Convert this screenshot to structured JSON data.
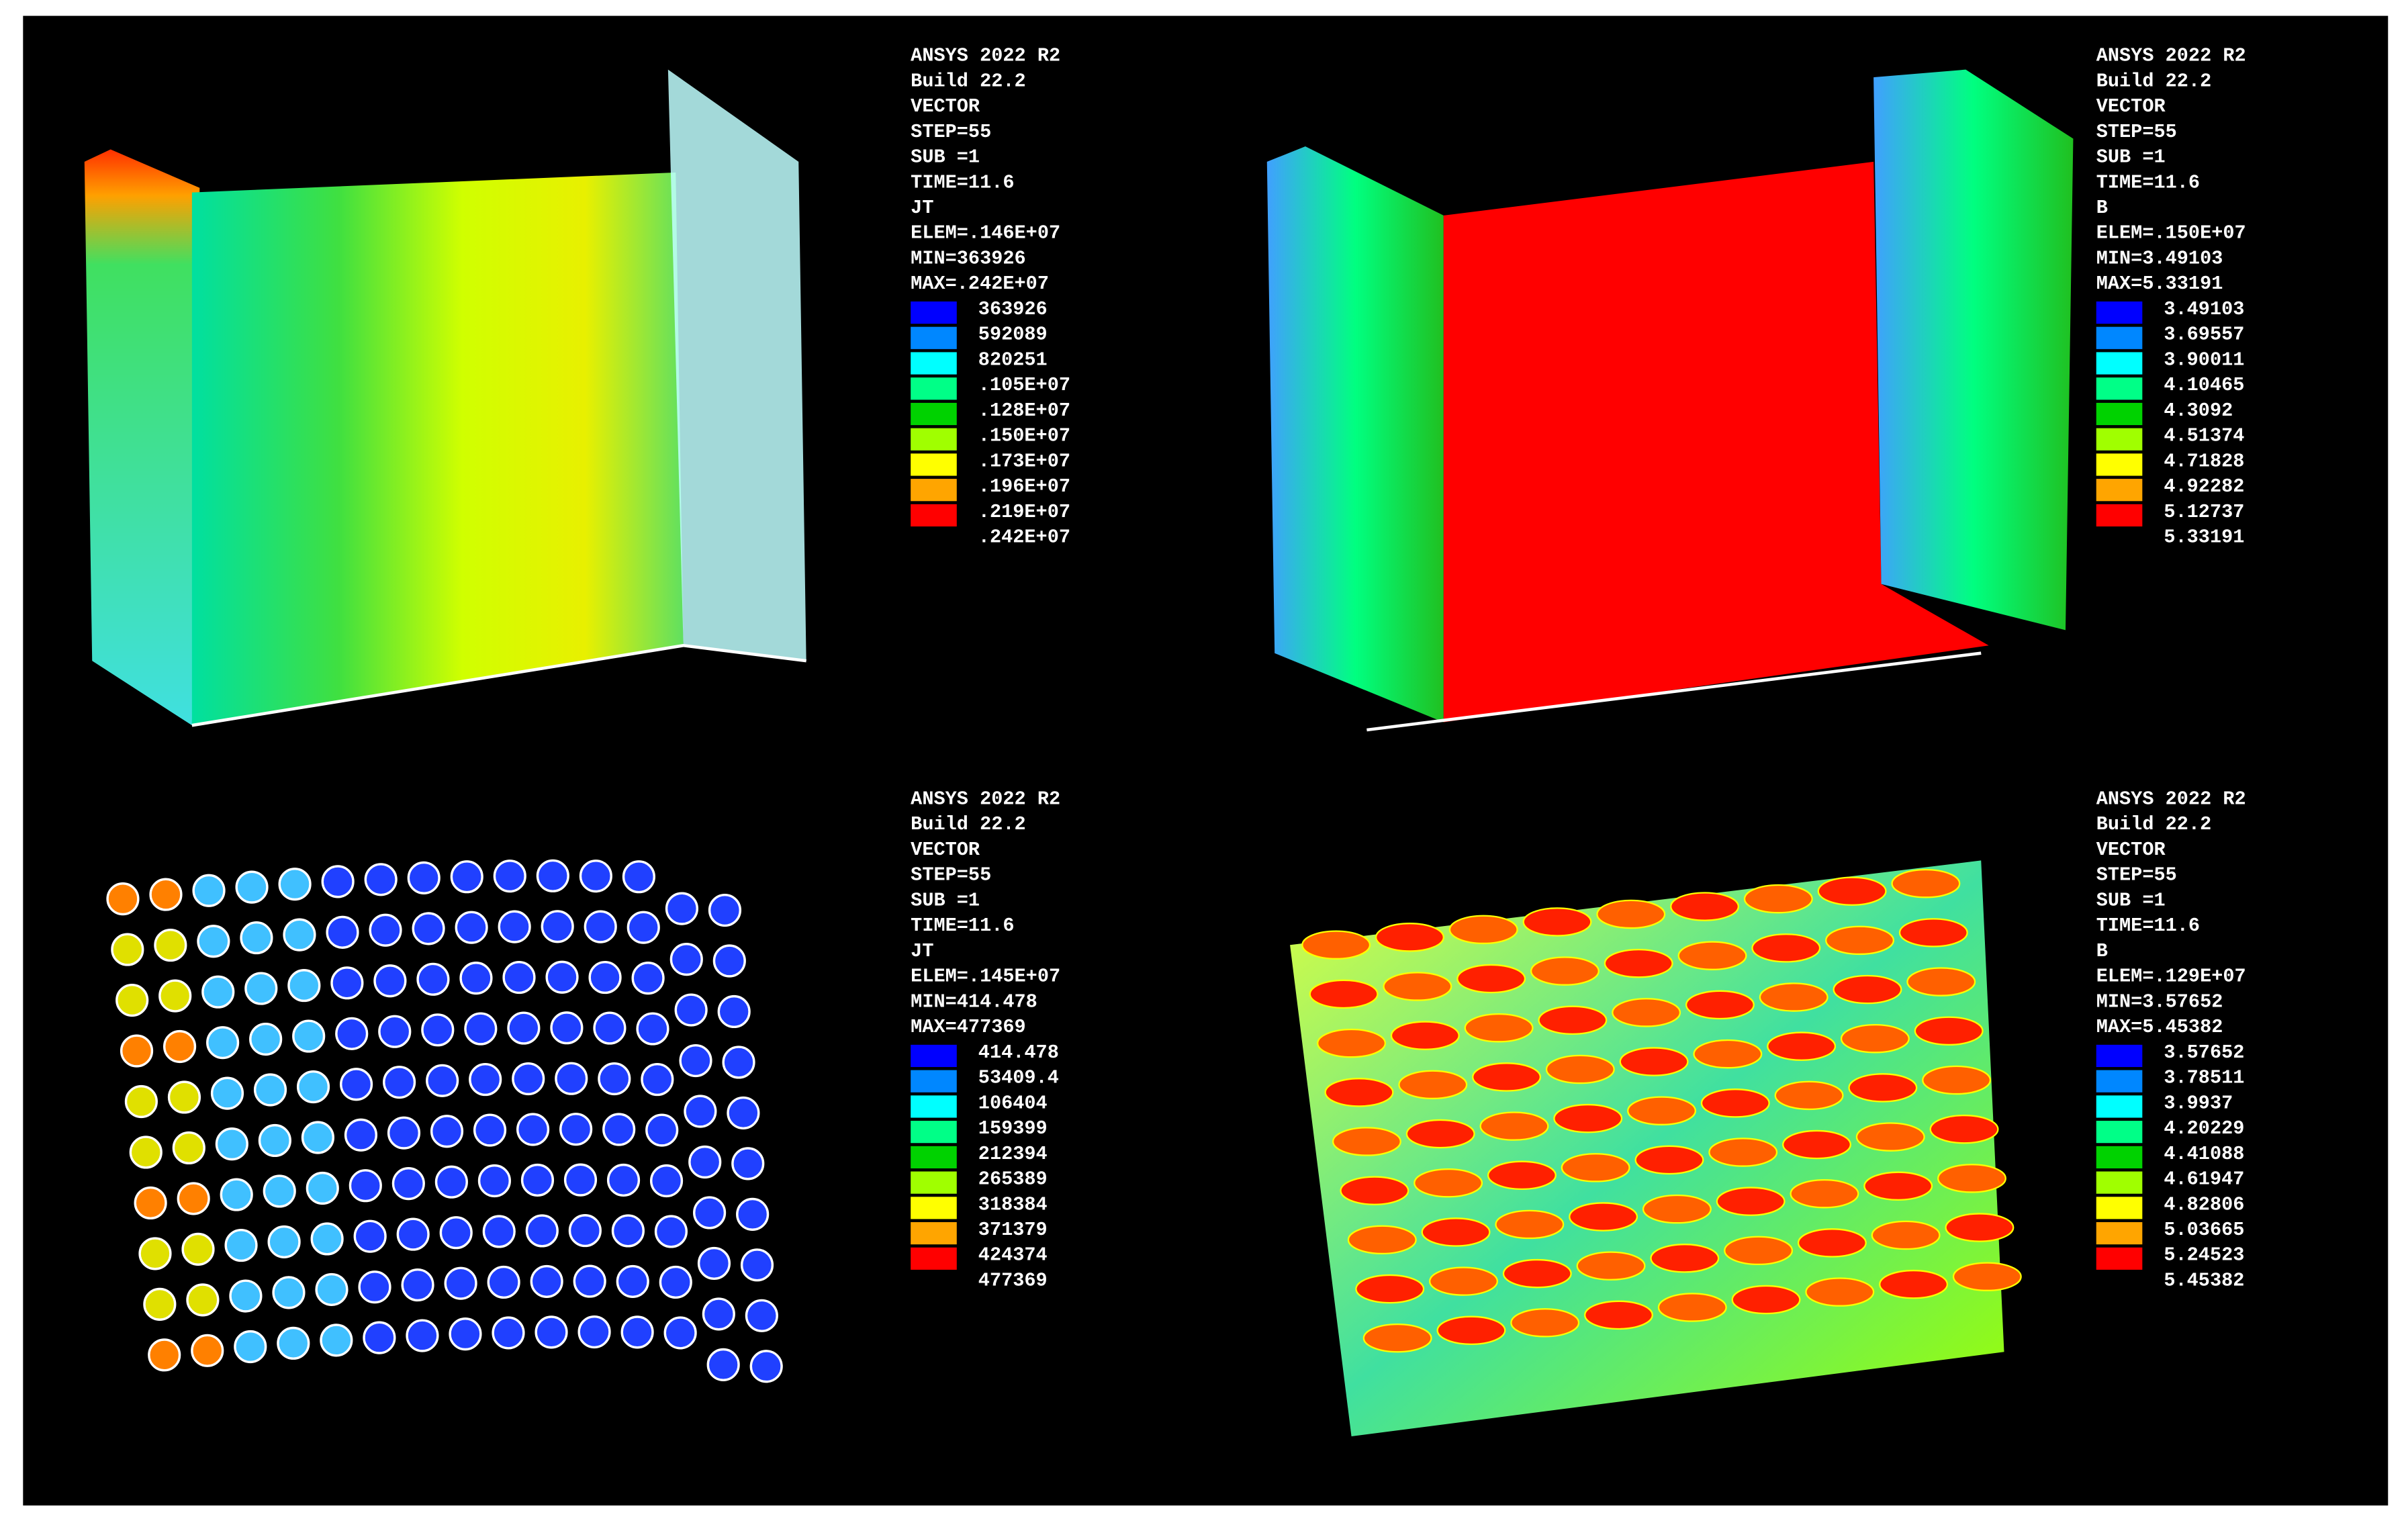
{
  "legend_colors": [
    "#0000ff",
    "#0087ff",
    "#00ffff",
    "#00ff87",
    "#00d200",
    "#a0ff00",
    "#ffff00",
    "#ffa500",
    "#ff0000"
  ],
  "panels": [
    {
      "info": [
        "ANSYS 2022 R2",
        "Build 22.2",
        "VECTOR",
        "STEP=55",
        "SUB =1",
        "TIME=11.6",
        "JT",
        "ELEM=.146E+07",
        "MIN=363926",
        "MAX=.242E+07"
      ],
      "legend": [
        "363926",
        "592089",
        "820251",
        ".105E+07",
        ".128E+07",
        ".150E+07",
        ".173E+07",
        ".196E+07",
        ".219E+07",
        ".242E+07"
      ]
    },
    {
      "info": [
        "ANSYS 2022 R2",
        "Build 22.2",
        "VECTOR",
        "STEP=55",
        "SUB =1",
        "TIME=11.6",
        "B",
        "ELEM=.150E+07",
        "MIN=3.49103",
        "MAX=5.33191"
      ],
      "legend": [
        "3.49103",
        "3.69557",
        "3.90011",
        "4.10465",
        "4.3092",
        "4.51374",
        "4.71828",
        "4.92282",
        "5.12737",
        "5.33191"
      ]
    },
    {
      "info": [
        "ANSYS 2022 R2",
        "Build 22.2",
        "VECTOR",
        "STEP=55",
        "SUB =1",
        "TIME=11.6",
        "JT",
        "ELEM=.145E+07",
        "MIN=414.478",
        "MAX=477369"
      ],
      "legend": [
        "414.478",
        "53409.4",
        "106404",
        "159399",
        "212394",
        "265389",
        "318384",
        "371379",
        "424374",
        "477369"
      ]
    },
    {
      "info": [
        "ANSYS 2022 R2",
        "Build 22.2",
        "VECTOR",
        "STEP=55",
        "SUB =1",
        "TIME=11.6",
        "B",
        "ELEM=.129E+07",
        "MIN=3.57652",
        "MAX=5.45382"
      ],
      "legend": [
        "3.57652",
        "3.78511",
        "3.9937",
        "4.20229",
        "4.41088",
        "4.61947",
        "4.82806",
        "5.03665",
        "5.24523",
        "5.45382"
      ]
    }
  ]
}
